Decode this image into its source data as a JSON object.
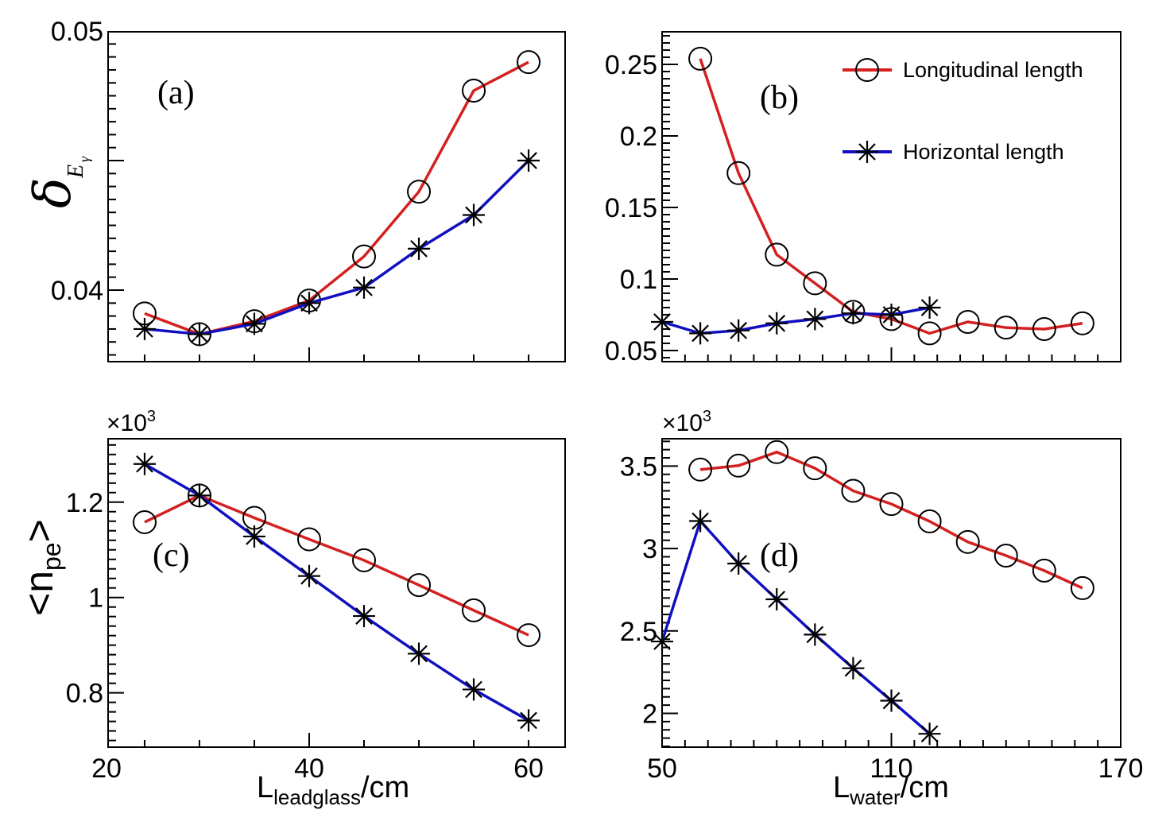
{
  "colors": {
    "longitudinal": "#d42020",
    "horizontal": "#1010c0",
    "marker": "#000000",
    "axis": "#000000"
  },
  "legend": {
    "items": [
      {
        "label": "Longitudinal length",
        "series": "longitudinal",
        "marker": "open-circle"
      },
      {
        "label": "Horizontal length",
        "series": "horizontal",
        "marker": "asterisk"
      }
    ]
  },
  "labels": {
    "y_top": {
      "symbol": "δ",
      "sub": "E",
      "subsub": "γ"
    },
    "y_bottom": {
      "open": "<n",
      "sub": "pe",
      "close": ">"
    },
    "x_left": {
      "main": "L",
      "sub": "leadglass",
      "suffix": "/cm"
    },
    "x_right": {
      "main": "L",
      "sub": "water",
      "suffix": "/cm"
    },
    "multiplier": {
      "base": "×10",
      "exp": "3"
    }
  },
  "chart_data": [
    {
      "id": "a",
      "panel_label": "(a)",
      "type": "line",
      "xlabel": "",
      "ylabel": "δ_{E_γ}",
      "xlim": [
        21.67,
        63.33
      ],
      "ylim": [
        0.03724,
        0.04997
      ],
      "x_ticks": [],
      "x_minor_step": 5,
      "x_major": [
        40
      ],
      "y_ticks": [
        {
          "v": 0.04,
          "label": "0.04"
        },
        {
          "v": 0.05,
          "label": "0.05"
        }
      ],
      "y_major_unlabeled": [
        0.045
      ],
      "y_minor_step": 0.0005,
      "multiplier": false,
      "x": [
        25,
        30,
        35,
        40,
        45,
        50,
        55,
        60
      ],
      "series": [
        {
          "name": "Longitudinal length",
          "key": "longitudinal",
          "x": [
            25,
            30,
            35,
            40,
            45,
            50,
            55,
            60
          ],
          "values": [
            0.0391,
            0.0383,
            0.0388,
            0.0396,
            0.0413,
            0.0438,
            0.0477,
            0.0488
          ]
        },
        {
          "name": "Horizontal length",
          "key": "horizontal",
          "x": [
            25,
            30,
            35,
            40,
            45,
            50,
            55,
            60
          ],
          "values": [
            0.0385,
            0.0383,
            0.0387,
            0.0395,
            0.0401,
            0.0416,
            0.0429,
            0.045
          ]
        }
      ],
      "legend": false
    },
    {
      "id": "b",
      "panel_label": "(b)",
      "type": "line",
      "xlabel": "",
      "ylabel": "",
      "xlim": [
        50,
        170
      ],
      "ylim": [
        0.0422,
        0.2728
      ],
      "x_ticks": [],
      "x_minor_step": 6,
      "x_major": [
        110
      ],
      "y_ticks": [
        {
          "v": 0.05,
          "label": "0.05"
        },
        {
          "v": 0.1,
          "label": "0.1"
        },
        {
          "v": 0.15,
          "label": "0.15"
        },
        {
          "v": 0.2,
          "label": "0.2"
        },
        {
          "v": 0.25,
          "label": "0.25"
        }
      ],
      "y_major_unlabeled": [],
      "y_minor_step": 0.005,
      "multiplier": false,
      "series": [
        {
          "name": "Longitudinal length",
          "key": "longitudinal",
          "x": [
            60,
            70,
            80,
            90,
            100,
            110,
            120,
            130,
            140,
            150,
            160
          ],
          "values": [
            0.254,
            0.174,
            0.117,
            0.097,
            0.077,
            0.072,
            0.062,
            0.07,
            0.066,
            0.065,
            0.069
          ]
        },
        {
          "name": "Horizontal length",
          "key": "horizontal",
          "x": [
            50,
            60,
            70,
            80,
            90,
            100,
            110,
            120
          ],
          "values": [
            0.07,
            0.062,
            0.064,
            0.069,
            0.072,
            0.076,
            0.075,
            0.08
          ]
        }
      ],
      "legend": true,
      "legend_position": "top-right"
    },
    {
      "id": "c",
      "panel_label": "(c)",
      "type": "line",
      "xlabel": "L_leadglass/cm",
      "ylabel": "<n_pe>",
      "xlim": [
        21.67,
        63.33
      ],
      "ylim": [
        0.686,
        1.333
      ],
      "x_ticks": [
        {
          "v": 20,
          "label": "20"
        },
        {
          "v": 40,
          "label": "40"
        },
        {
          "v": 60,
          "label": "60"
        }
      ],
      "x_minor_step": 5,
      "x_major": [
        40
      ],
      "y_ticks": [
        {
          "v": 0.8,
          "label": "0.8"
        },
        {
          "v": 1.0,
          "label": "1"
        },
        {
          "v": 1.2,
          "label": "1.2"
        }
      ],
      "y_major_unlabeled": [],
      "y_minor_step": 0.02,
      "multiplier": true,
      "y_scale_note": "×10^3",
      "series": [
        {
          "name": "Longitudinal length",
          "key": "longitudinal",
          "x": [
            25,
            30,
            35,
            40,
            45,
            50,
            55,
            60
          ],
          "values": [
            1.158,
            1.214,
            1.167,
            1.122,
            1.078,
            1.026,
            0.973,
            0.921
          ]
        },
        {
          "name": "Horizontal length",
          "key": "horizontal",
          "x": [
            25,
            30,
            35,
            40,
            45,
            50,
            55,
            60
          ],
          "values": [
            1.28,
            1.214,
            1.128,
            1.045,
            0.961,
            0.882,
            0.807,
            0.742
          ]
        }
      ],
      "legend": false
    },
    {
      "id": "d",
      "panel_label": "(d)",
      "type": "line",
      "xlabel": "L_water/cm",
      "ylabel": "",
      "xlim": [
        50,
        170
      ],
      "ylim": [
        1.795,
        3.666
      ],
      "x_ticks": [
        {
          "v": 50,
          "label": "50"
        },
        {
          "v": 110,
          "label": "110"
        },
        {
          "v": 170,
          "label": "170"
        }
      ],
      "x_minor_step": 6,
      "x_major": [
        110
      ],
      "y_ticks": [
        {
          "v": 2.0,
          "label": "2"
        },
        {
          "v": 2.5,
          "label": "2.5"
        },
        {
          "v": 3.0,
          "label": "3"
        },
        {
          "v": 3.5,
          "label": "3.5"
        }
      ],
      "y_major_unlabeled": [],
      "y_minor_step": 0.05,
      "multiplier": true,
      "y_scale_note": "×10^3",
      "series": [
        {
          "name": "Longitudinal length",
          "key": "longitudinal",
          "x": [
            60,
            70,
            80,
            90,
            100,
            110,
            120,
            130,
            140,
            150,
            160
          ],
          "values": [
            3.479,
            3.503,
            3.585,
            3.487,
            3.35,
            3.27,
            3.165,
            3.04,
            2.957,
            2.866,
            2.76
          ]
        },
        {
          "name": "Horizontal length",
          "key": "horizontal",
          "x": [
            50,
            60,
            70,
            80,
            90,
            100,
            110,
            120
          ],
          "values": [
            2.436,
            3.167,
            2.909,
            2.692,
            2.478,
            2.274,
            2.077,
            1.876
          ]
        }
      ],
      "legend": false
    }
  ]
}
